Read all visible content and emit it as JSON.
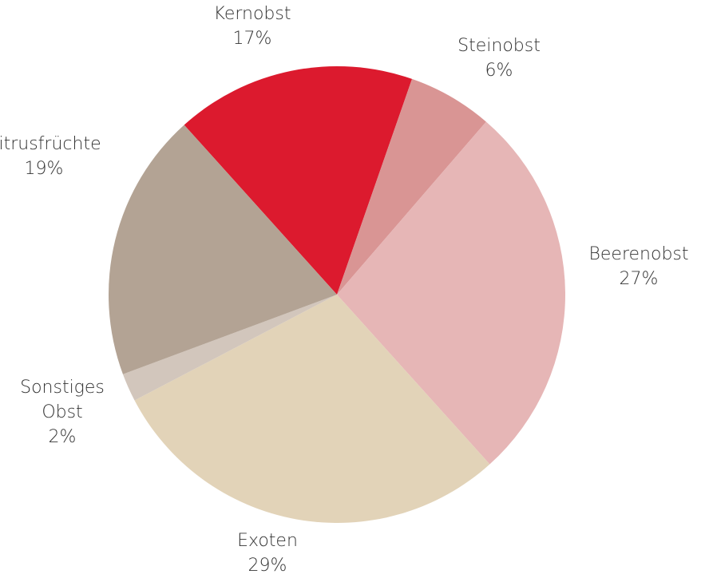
{
  "chart_data": {
    "type": "pie",
    "categories": [
      "Kernobst",
      "Steinobst",
      "Beerenobst",
      "Exoten",
      "Sonstiges Obst",
      "Zitrusfrüchte"
    ],
    "values": [
      17,
      6,
      27,
      29,
      2,
      19
    ],
    "value_labels": [
      "17%",
      "6%",
      "27%",
      "29%",
      "2%",
      "19%"
    ],
    "colors": [
      "#dc1a2e",
      "#d99594",
      "#e6b6b6",
      "#e2d3b8",
      "#d2c6bc",
      "#b3a394"
    ]
  }
}
